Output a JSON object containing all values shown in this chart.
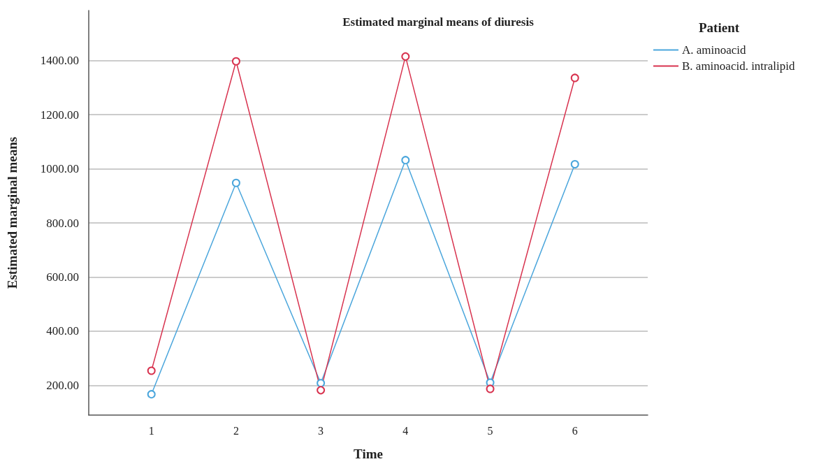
{
  "chart_data": {
    "type": "line",
    "title": "Estimated marginal means of diuresis",
    "xlabel": "Time",
    "ylabel": "Estimated marginal means",
    "legend_title": "Patient",
    "x": [
      1,
      2,
      3,
      4,
      5,
      6
    ],
    "series": [
      {
        "name": "A. aminoacid",
        "color": "#4ba6dc",
        "values": [
          167,
          948,
          208,
          1032,
          210,
          1017
        ]
      },
      {
        "name": "B. aminoacid. intralipid",
        "color": "#d8334f",
        "values": [
          254,
          1397,
          182,
          1415,
          187,
          1336
        ]
      }
    ],
    "xlim": [
      0.26,
      6.86
    ],
    "xticks": [
      1,
      2,
      3,
      4,
      5,
      6
    ],
    "ylim": [
      90,
      1585
    ],
    "yticks": [
      {
        "value": 200,
        "label": "200.00"
      },
      {
        "value": 400,
        "label": "400.00"
      },
      {
        "value": 600,
        "label": "600.00"
      },
      {
        "value": 800,
        "label": "800.00"
      },
      {
        "value": 1000,
        "label": "1000.00"
      },
      {
        "value": 1200,
        "label": "1200.00"
      },
      {
        "value": 1400,
        "label": "1400.00"
      }
    ],
    "grid": "y",
    "legend": "top right",
    "marker": "circle",
    "line_style": "solid"
  }
}
